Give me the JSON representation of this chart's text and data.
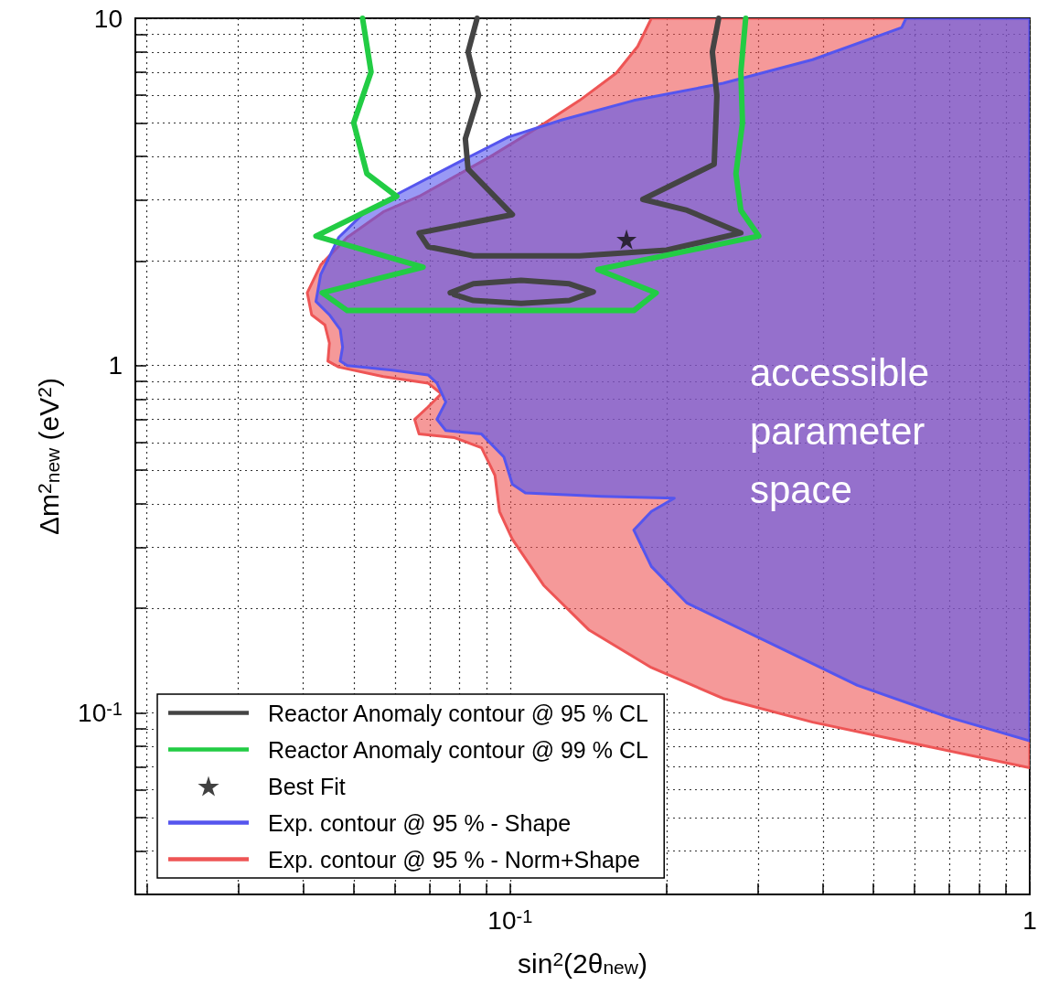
{
  "chart_data": {
    "type": "line",
    "xlabel": "sin$^{2}$(2θ$_{new}$)",
    "ylabel": "Δm$^{2}$$_{new}$ (eV$^{2}$)",
    "log": "xy",
    "grid": true,
    "legend": "bottom left",
    "marker": "none",
    "xlim": [
      0.019,
      1
    ],
    "ylim": [
      0.03,
      10
    ],
    "xticks": [
      {
        "value": 0.02,
        "label": null
      },
      {
        "value": 0.03,
        "label": null
      },
      {
        "value": 0.04,
        "label": null
      },
      {
        "value": 0.05,
        "label": null
      },
      {
        "value": 0.06,
        "label": null
      },
      {
        "value": 0.07,
        "label": null
      },
      {
        "value": 0.08,
        "label": null
      },
      {
        "value": 0.09,
        "label": null
      },
      {
        "value": 0.1,
        "label": "10$^{-1}$"
      },
      {
        "value": 0.2,
        "label": null
      },
      {
        "value": 0.3,
        "label": null
      },
      {
        "value": 0.4,
        "label": null
      },
      {
        "value": 0.5,
        "label": null
      },
      {
        "value": 0.6,
        "label": null
      },
      {
        "value": 0.7,
        "label": null
      },
      {
        "value": 0.8,
        "label": null
      },
      {
        "value": 0.9,
        "label": null
      },
      1
    ],
    "yticks": [
      {
        "value": 0.03,
        "label": null
      },
      {
        "value": 0.04,
        "label": null
      },
      {
        "value": 0.05,
        "label": null
      },
      {
        "value": 0.06,
        "label": null
      },
      {
        "value": 0.07,
        "label": null
      },
      {
        "value": 0.08,
        "label": null
      },
      {
        "value": 0.09,
        "label": null
      },
      {
        "value": 0.1,
        "label": "10$^{-1}$"
      },
      {
        "value": 0.2,
        "label": null
      },
      {
        "value": 0.3,
        "label": null
      },
      {
        "value": 0.4,
        "label": null
      },
      {
        "value": 0.5,
        "label": null
      },
      {
        "value": 0.6,
        "label": null
      },
      {
        "value": 0.7,
        "label": null
      },
      {
        "value": 0.8,
        "label": null
      },
      {
        "value": 0.9,
        "label": null
      },
      1,
      {
        "value": 2,
        "label": null
      },
      {
        "value": 3,
        "label": null
      },
      {
        "value": 4,
        "label": null
      },
      {
        "value": 5,
        "label": null
      },
      {
        "value": 6,
        "label": null
      },
      {
        "value": 7,
        "label": null
      },
      {
        "value": 8,
        "label": null
      },
      {
        "value": 9,
        "label": null
      },
      10
    ],
    "series": [
      {
        "name": "Reactor Anomaly contour @ 95 % CL",
        "color": "#444444",
        "x": [
          0.0864,
          0.083,
          0.087,
          0.082,
          0.083,
          0.101,
          0.0668,
          0.0695,
          0.085,
          0.136,
          0.2,
          0.278,
          0.219,
          0.18,
          0.247,
          0.25,
          0.245,
          0.252
        ],
        "values": [
          10,
          8,
          6,
          4.5,
          3.68,
          2.72,
          2.41,
          2.2,
          2.07,
          2.07,
          2.15,
          2.41,
          2.8,
          3.01,
          3.8,
          6,
          8,
          10
        ]
      },
      {
        "name": "Reactor Anomaly contour @ 99 % CL",
        "color": "#22cc44",
        "x": [
          0.052,
          0.054,
          0.05,
          0.053,
          0.0605,
          0.0423,
          0.068,
          0.0435,
          0.0486,
          0.173,
          0.191,
          0.1475,
          0.301,
          0.278,
          0.272,
          0.28,
          0.278,
          0.284
        ],
        "values": [
          10,
          7,
          5,
          3.57,
          3.07,
          2.36,
          1.92,
          1.62,
          1.44,
          1.44,
          1.62,
          1.89,
          2.36,
          2.8,
          3.57,
          5,
          7,
          10
        ]
      },
      {
        "name": "Best Fit",
        "type": "scatter",
        "marker": "star",
        "color": "#111111",
        "x": [
          0.1675
        ],
        "values": [
          2.31
        ]
      },
      {
        "name": "Exp. contour @ 95 % - Shape",
        "type": "area",
        "color": "#5555ee",
        "x": [
          0.578,
          0.567,
          0.382,
          0.257,
          0.173,
          0.126,
          0.0992,
          0.0782,
          0.0617,
          0.0526,
          0.0468,
          0.0432,
          0.0423,
          0.0449,
          0.0471,
          0.0476,
          0.0471,
          0.0486,
          0.0593,
          0.0695,
          0.0723,
          0.0752,
          0.0723,
          0.0752,
          0.0881,
          0.0973,
          0.101,
          0.107,
          0.15,
          0.207,
          0.187,
          0.173,
          0.187,
          0.219,
          0.313,
          0.466,
          0.692,
          1,
          1
        ],
        "values": [
          10,
          9.4,
          7.6,
          6.5,
          5.8,
          5.1,
          4.55,
          3.8,
          3.16,
          2.77,
          2.34,
          1.83,
          1.53,
          1.4,
          1.27,
          1.13,
          1.03,
          1,
          0.97,
          0.94,
          0.89,
          0.785,
          0.7,
          0.65,
          0.635,
          0.545,
          0.455,
          0.43,
          0.42,
          0.415,
          0.38,
          0.336,
          0.264,
          0.207,
          0.16,
          0.12,
          0.0975,
          0.083,
          10
        ]
      },
      {
        "name": "Exp. contour @ 95 % - Norm+Shape",
        "type": "area",
        "color": "#ee5555",
        "x": [
          0.187,
          0.176,
          0.16,
          0.136,
          0.112,
          0.0917,
          0.0782,
          0.0668,
          0.057,
          0.0486,
          0.0432,
          0.0407,
          0.0415,
          0.044,
          0.0449,
          0.0446,
          0.0468,
          0.057,
          0.0695,
          0.0737,
          0.0695,
          0.0655,
          0.0668,
          0.0782,
          0.0881,
          0.0935,
          0.0954,
          0.101,
          0.116,
          0.142,
          0.187,
          0.257,
          0.382,
          0.567,
          1,
          1
        ],
        "values": [
          10,
          8.3,
          6.95,
          5.8,
          4.8,
          4,
          3.5,
          3.07,
          2.77,
          2.34,
          1.95,
          1.62,
          1.4,
          1.31,
          1.16,
          1.03,
          0.99,
          0.93,
          0.89,
          0.83,
          0.76,
          0.7,
          0.635,
          0.62,
          0.58,
          0.483,
          0.38,
          0.316,
          0.233,
          0.173,
          0.135,
          0.11,
          0.094,
          0.083,
          0.0695,
          10
        ]
      },
      {
        "type": "line",
        "color": "#444444",
        "x": [
          0.0767,
          0.085,
          0.105,
          0.13,
          0.1446,
          0.13,
          0.105,
          0.085,
          0.078
        ],
        "values": [
          1.62,
          1.72,
          1.76,
          1.72,
          1.63,
          1.54,
          1.51,
          1.54,
          1.6
        ]
      }
    ],
    "annotations": [
      "accessible\nparameter\nspace"
    ]
  }
}
